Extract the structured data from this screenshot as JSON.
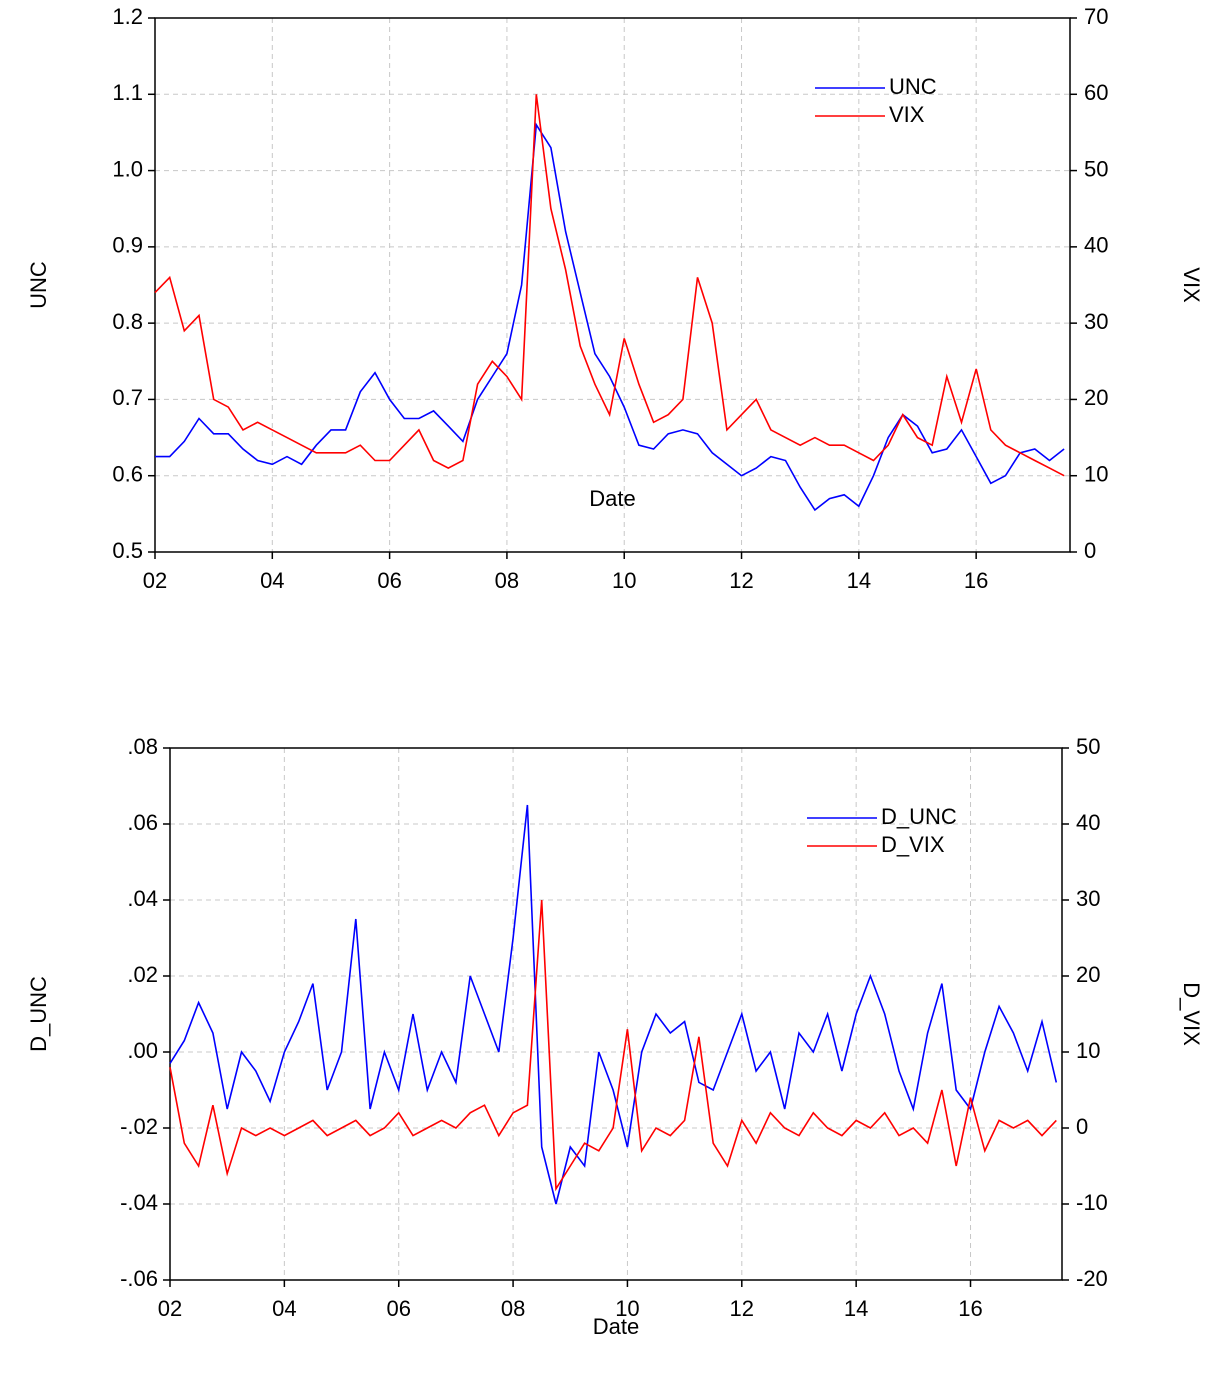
{
  "chart_data": [
    {
      "type": "line",
      "x": [
        2002,
        2002.25,
        2002.5,
        2002.75,
        2003,
        2003.25,
        2003.5,
        2003.75,
        2004,
        2004.25,
        2004.5,
        2004.75,
        2005,
        2005.25,
        2005.5,
        2005.75,
        2006,
        2006.25,
        2006.5,
        2006.75,
        2007,
        2007.25,
        2007.5,
        2007.75,
        2008,
        2008.25,
        2008.5,
        2008.75,
        2009,
        2009.25,
        2009.5,
        2009.75,
        2010,
        2010.25,
        2010.5,
        2010.75,
        2011,
        2011.25,
        2011.5,
        2011.75,
        2012,
        2012.25,
        2012.5,
        2012.75,
        2013,
        2013.25,
        2013.5,
        2013.75,
        2014,
        2014.25,
        2014.5,
        2014.75,
        2015,
        2015.25,
        2015.5,
        2015.75,
        2016,
        2016.25,
        2016.5,
        2016.75,
        2017,
        2017.25,
        2017.5
      ],
      "xlim": [
        2002,
        2017.6
      ],
      "xticks": [
        {
          "value": 2002,
          "label": "02"
        },
        {
          "value": 2004,
          "label": "04"
        },
        {
          "value": 2006,
          "label": "06"
        },
        {
          "value": 2008,
          "label": "08"
        },
        {
          "value": 2010,
          "label": "10"
        },
        {
          "value": 2012,
          "label": "12"
        },
        {
          "value": 2014,
          "label": "14"
        },
        {
          "value": 2016,
          "label": "16"
        }
      ],
      "xlabel": "Date",
      "ylabel": "UNC",
      "y2label": "VIX",
      "ylim": [
        0.5,
        1.2
      ],
      "yticks": [
        0.5,
        0.6,
        0.7,
        0.8,
        0.9,
        {
          "value": 1,
          "label": "1.0"
        },
        1.1,
        1.2
      ],
      "y2lim": [
        0,
        70
      ],
      "y2ticks": [
        0,
        10,
        20,
        30,
        40,
        50,
        60,
        70
      ],
      "grid": true,
      "legend": "upper right",
      "series": [
        {
          "name": "UNC",
          "color": "#0000ff",
          "values": [
            0.625,
            0.625,
            0.645,
            0.675,
            0.655,
            0.655,
            0.635,
            0.62,
            0.615,
            0.625,
            0.615,
            0.64,
            0.66,
            0.66,
            0.71,
            0.735,
            0.7,
            0.675,
            0.675,
            0.685,
            0.665,
            0.645,
            0.7,
            0.73,
            0.76,
            0.85,
            1.06,
            1.03,
            0.92,
            0.84,
            0.76,
            0.73,
            0.69,
            0.64,
            0.635,
            0.655,
            0.66,
            0.655,
            0.63,
            0.615,
            0.6,
            0.61,
            0.625,
            0.62,
            0.585,
            0.555,
            0.57,
            0.575,
            0.56,
            0.6,
            0.65,
            0.68,
            0.665,
            0.63,
            0.635,
            0.66,
            0.625,
            0.59,
            0.6,
            0.63,
            0.635,
            0.62,
            0.635
          ]
        },
        {
          "name": "VIX",
          "color": "#ff0000",
          "axis": "y2",
          "values": [
            34,
            36,
            29,
            31,
            20,
            19,
            16,
            17,
            16,
            15,
            14,
            13,
            13,
            13,
            14,
            12,
            12,
            14,
            16,
            12,
            11,
            12,
            22,
            25,
            23,
            20,
            60,
            45,
            37,
            27,
            22,
            18,
            28,
            22,
            17,
            18,
            20,
            36,
            30,
            16,
            18,
            20,
            16,
            15,
            14,
            15,
            14,
            14,
            13,
            12,
            14,
            18,
            15,
            14,
            23,
            17,
            24,
            16,
            14,
            13,
            12,
            11,
            10
          ]
        }
      ]
    },
    {
      "type": "line",
      "x": [
        2002,
        2002.25,
        2002.5,
        2002.75,
        2003,
        2003.25,
        2003.5,
        2003.75,
        2004,
        2004.25,
        2004.5,
        2004.75,
        2005,
        2005.25,
        2005.5,
        2005.75,
        2006,
        2006.25,
        2006.5,
        2006.75,
        2007,
        2007.25,
        2007.5,
        2007.75,
        2008,
        2008.25,
        2008.5,
        2008.75,
        2009,
        2009.25,
        2009.5,
        2009.75,
        2010,
        2010.25,
        2010.5,
        2010.75,
        2011,
        2011.25,
        2011.5,
        2011.75,
        2012,
        2012.25,
        2012.5,
        2012.75,
        2013,
        2013.25,
        2013.5,
        2013.75,
        2014,
        2014.25,
        2014.5,
        2014.75,
        2015,
        2015.25,
        2015.5,
        2015.75,
        2016,
        2016.25,
        2016.5,
        2016.75,
        2017,
        2017.25,
        2017.5
      ],
      "xlim": [
        2002,
        2017.6
      ],
      "xticks": [
        {
          "value": 2002,
          "label": "02"
        },
        {
          "value": 2004,
          "label": "04"
        },
        {
          "value": 2006,
          "label": "06"
        },
        {
          "value": 2008,
          "label": "08"
        },
        {
          "value": 2010,
          "label": "10"
        },
        {
          "value": 2012,
          "label": "12"
        },
        {
          "value": 2014,
          "label": "14"
        },
        {
          "value": 2016,
          "label": "16"
        }
      ],
      "xlabel": "Date",
      "ylabel": "D_UNC",
      "y2label": "D_VIX",
      "ylim": [
        -0.06,
        0.08
      ],
      "yticks": [
        {
          "value": -0.06,
          "label": "-.06"
        },
        {
          "value": -0.04,
          "label": "-.04"
        },
        {
          "value": -0.02,
          "label": "-.02"
        },
        {
          "value": 0,
          "label": ".00"
        },
        {
          "value": 0.02,
          "label": ".02"
        },
        {
          "value": 0.04,
          "label": ".04"
        },
        {
          "value": 0.06,
          "label": ".06"
        },
        {
          "value": 0.08,
          "label": ".08"
        }
      ],
      "y2lim": [
        -20,
        50
      ],
      "y2ticks": [
        -20,
        -10,
        0,
        10,
        20,
        30,
        40,
        50
      ],
      "grid": true,
      "legend": "upper right",
      "series": [
        {
          "name": "D_UNC",
          "color": "#0000ff",
          "values": [
            -0.003,
            0.003,
            0.013,
            0.005,
            -0.015,
            0.0,
            -0.005,
            -0.013,
            0.0,
            0.008,
            0.018,
            -0.01,
            0.0,
            0.035,
            -0.015,
            0.0,
            -0.01,
            0.01,
            -0.01,
            0.0,
            -0.008,
            0.02,
            0.01,
            0.0,
            0.03,
            0.065,
            -0.025,
            -0.04,
            -0.025,
            -0.03,
            0.0,
            -0.01,
            -0.025,
            0.0,
            0.01,
            0.005,
            0.008,
            -0.008,
            -0.01,
            0.0,
            0.01,
            -0.005,
            0.0,
            -0.015,
            0.005,
            0.0,
            0.01,
            -0.005,
            0.01,
            0.02,
            0.01,
            -0.005,
            -0.015,
            0.005,
            0.018,
            -0.01,
            -0.015,
            0.0,
            0.012,
            0.005,
            -0.005,
            0.008,
            -0.008
          ]
        },
        {
          "name": "D_VIX",
          "color": "#ff0000",
          "axis": "y2",
          "values": [
            8,
            -2,
            -5,
            3,
            -6,
            0,
            -1,
            0,
            -1,
            0,
            1,
            -1,
            0,
            1,
            -1,
            0,
            2,
            -1,
            0,
            1,
            0,
            2,
            3,
            -1,
            2,
            3,
            30,
            -8,
            -5,
            -2,
            -3,
            0,
            13,
            -3,
            0,
            -1,
            1,
            12,
            -2,
            -5,
            1,
            -2,
            2,
            0,
            -1,
            2,
            0,
            -1,
            1,
            0,
            2,
            -1,
            0,
            -2,
            5,
            -5,
            4,
            -3,
            1,
            0,
            1,
            -1,
            1
          ]
        }
      ]
    }
  ]
}
